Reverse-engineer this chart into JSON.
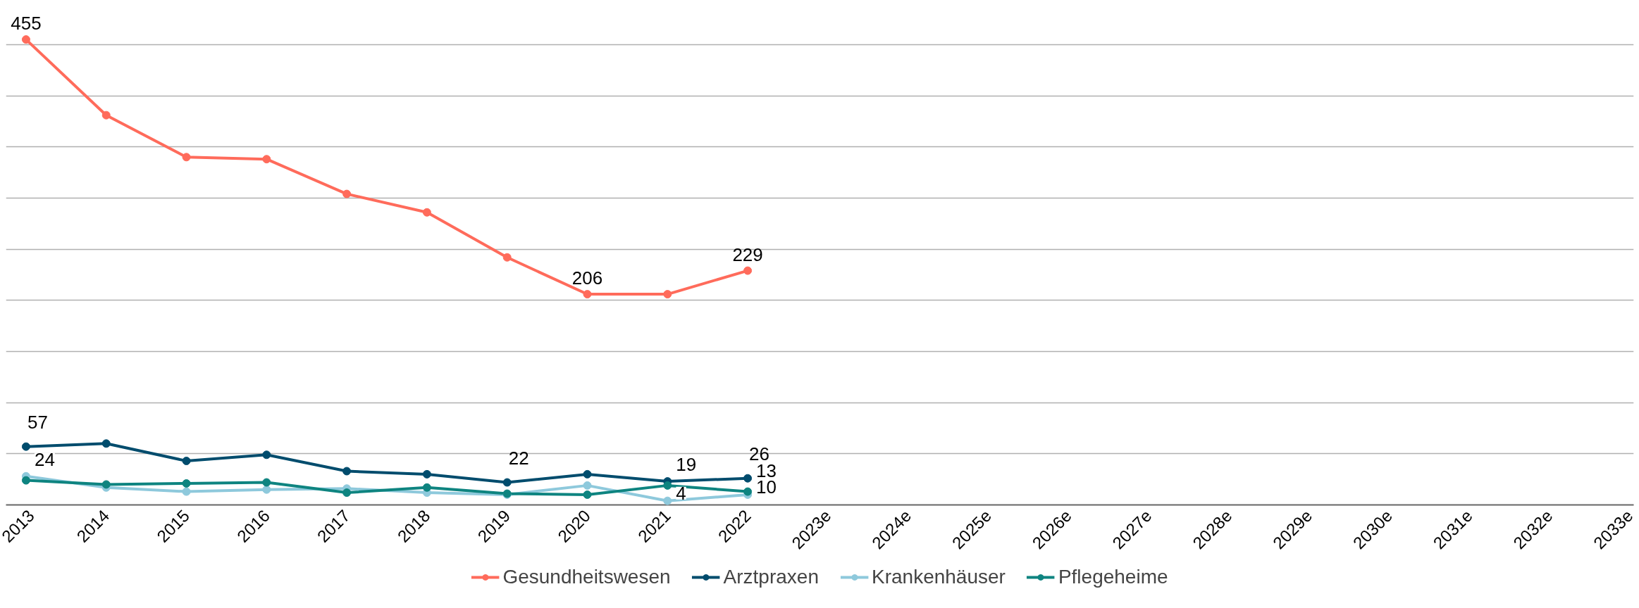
{
  "chart_data": {
    "type": "line",
    "categories": [
      "2013",
      "2014",
      "2015",
      "2016",
      "2017",
      "2018",
      "2019",
      "2020",
      "2021",
      "2022",
      "2023e",
      "2024e",
      "2025e",
      "2026e",
      "2027e",
      "2028e",
      "2029e",
      "2030e",
      "2031e",
      "2032e",
      "2033e"
    ],
    "series": [
      {
        "name": "Gesundheitswesen",
        "color": "#ff6b5b",
        "values": [
          455,
          381,
          340,
          338,
          304,
          286,
          242,
          206,
          206,
          229,
          null,
          null,
          null,
          null,
          null,
          null,
          null,
          null,
          null,
          null,
          null
        ],
        "value_labels": [
          "455",
          null,
          null,
          null,
          null,
          null,
          null,
          "206",
          null,
          "229",
          null,
          null,
          null,
          null,
          null,
          null,
          null,
          null,
          null,
          null,
          null
        ]
      },
      {
        "name": "Arztpraxen",
        "color": "#004c6d",
        "values": [
          57,
          60,
          43,
          49,
          33,
          30,
          22,
          30,
          23,
          26,
          null,
          null,
          null,
          null,
          null,
          null,
          null,
          null,
          null,
          null,
          null
        ],
        "value_labels": [
          "57",
          null,
          null,
          null,
          null,
          null,
          "22",
          null,
          null,
          "26",
          null,
          null,
          null,
          null,
          null,
          null,
          null,
          null,
          null,
          null,
          null
        ]
      },
      {
        "name": "Krankenhäuser",
        "color": "#8ec9dc",
        "values": [
          28,
          17,
          13,
          15,
          16,
          12,
          10,
          19,
          4,
          10,
          null,
          null,
          null,
          null,
          null,
          null,
          null,
          null,
          null,
          null,
          null
        ],
        "value_labels": [
          null,
          null,
          null,
          null,
          null,
          null,
          null,
          null,
          "4",
          "10",
          null,
          null,
          null,
          null,
          null,
          null,
          null,
          null,
          null,
          null,
          null
        ]
      },
      {
        "name": "Pflegeheime",
        "color": "#0e8480",
        "values": [
          24,
          20,
          21,
          22,
          12,
          17,
          11,
          10,
          19,
          13,
          null,
          null,
          null,
          null,
          null,
          null,
          null,
          null,
          null,
          null,
          null
        ],
        "value_labels": [
          "24",
          null,
          null,
          null,
          null,
          null,
          null,
          null,
          "19",
          "13",
          null,
          null,
          null,
          null,
          null,
          null,
          null,
          null,
          null,
          null,
          null
        ]
      }
    ],
    "yticks": [
      {
        "value": 0,
        "label": null
      },
      {
        "value": 50,
        "label": null
      },
      {
        "value": 100,
        "label": null
      },
      {
        "value": 150,
        "label": null
      },
      {
        "value": 200,
        "label": null
      },
      {
        "value": 250,
        "label": null
      },
      {
        "value": 300,
        "label": null
      },
      {
        "value": 350,
        "label": null
      },
      {
        "value": 400,
        "label": null
      },
      {
        "value": 450,
        "label": null
      }
    ],
    "tick_labels": "x",
    "grid": "y",
    "legend": "bottom",
    "marker": "circle",
    "line_style": "solid"
  }
}
